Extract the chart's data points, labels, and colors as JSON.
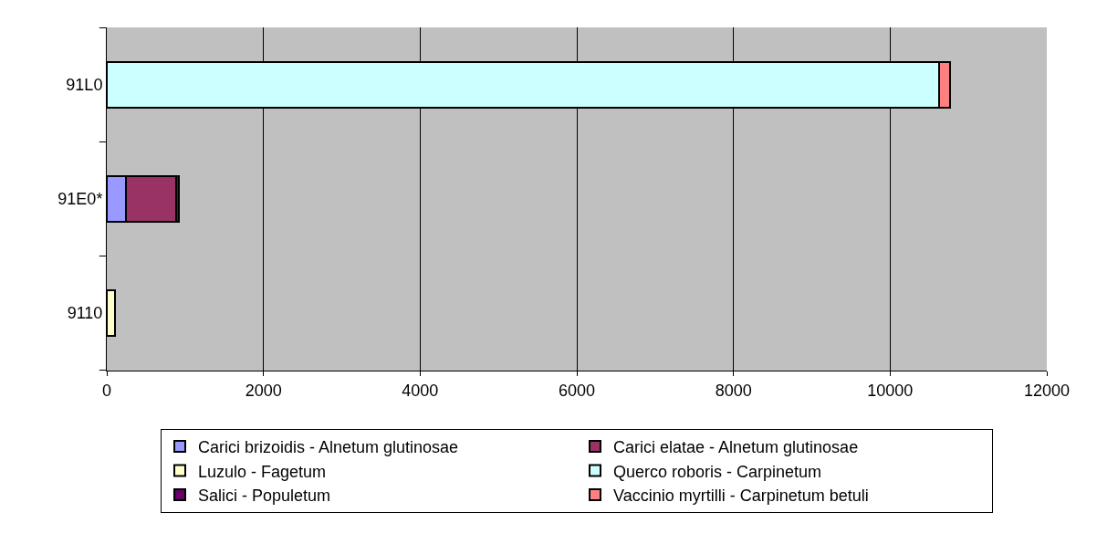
{
  "chart_data": {
    "type": "bar",
    "orientation": "horizontal",
    "stacked": true,
    "categories": [
      "91L0",
      "91E0*",
      "9110"
    ],
    "series": [
      {
        "name": "Carici brizoidis - Alnetum glutinosae",
        "color": "#9999ff",
        "values": [
          null,
          240,
          null
        ]
      },
      {
        "name": "Carici elatae - Alnetum glutinosae",
        "color": "#993366",
        "values": [
          null,
          650,
          null
        ]
      },
      {
        "name": "Luzulo - Fagetum",
        "color": "#ffffcc",
        "values": [
          null,
          null,
          110
        ]
      },
      {
        "name": "Querco roboris - Carpinetum",
        "color": "#ccffff",
        "values": [
          10630,
          null,
          null
        ]
      },
      {
        "name": "Salici - Populetum",
        "color": "#660066",
        "values": [
          null,
          30,
          null
        ]
      },
      {
        "name": "Vaccinio myrtilli - Carpinetum betuli",
        "color": "#ff8080",
        "values": [
          130,
          null,
          null
        ]
      }
    ],
    "xlim": [
      0,
      12000
    ],
    "xticks": [
      0,
      2000,
      4000,
      6000,
      8000,
      10000,
      12000
    ],
    "grid": "x",
    "legend": "bottom"
  }
}
